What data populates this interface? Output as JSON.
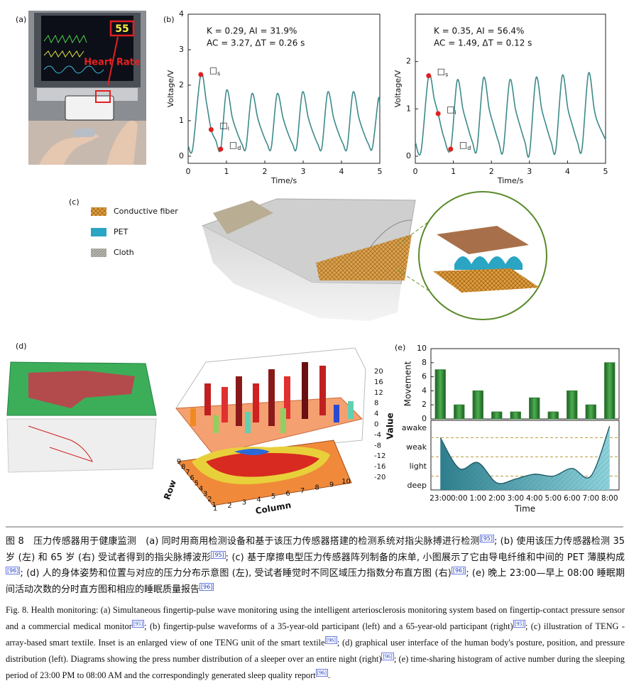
{
  "panel_labels": [
    "(a)",
    "(b)",
    "(c)",
    "(d)",
    "(e)"
  ],
  "panel_a": {
    "monitor_reading": "55",
    "annotation": "Heart Rate"
  },
  "panel_c": {
    "legend": [
      "Conductive fiber",
      "PET",
      "Cloth"
    ]
  },
  "panel_d": {
    "value_label": "Value",
    "row_label": "Row",
    "column_label": "Column",
    "value_ticks": [
      20,
      16,
      12,
      8,
      4,
      0,
      -4,
      -8,
      -12,
      -16,
      -20
    ],
    "row_ticks": [
      9,
      8,
      7,
      6,
      5,
      4,
      3,
      2,
      1
    ],
    "column_ticks": [
      1,
      2,
      3,
      4,
      5,
      6,
      7,
      8,
      9,
      10
    ]
  },
  "chart_data": [
    {
      "type": "line",
      "xlabel": "Time/s",
      "ylabel": "Voltage/V",
      "annotations": [
        "K = 0.29,  AI = 31.9%",
        "AC = 3.27,  ΔT = 0.26 s"
      ],
      "xlim": [
        0,
        5
      ],
      "ylim": [
        -0.2,
        4
      ],
      "xticks": [
        0,
        1,
        2,
        3,
        4,
        5
      ],
      "yticks": [
        0,
        1,
        2,
        3,
        4
      ],
      "color": "#3d8a8a",
      "series": [
        {
          "x": [
            0,
            0.12,
            0.33,
            0.48,
            0.6,
            0.72,
            0.85,
            1.0,
            1.15,
            1.25,
            1.4,
            1.51,
            1.66,
            1.81,
            1.91,
            2.06,
            2.17,
            2.32,
            2.47,
            2.57,
            2.72,
            2.83,
            2.98,
            3.13,
            3.23,
            3.38,
            3.49,
            3.64,
            3.79,
            3.89,
            4.04,
            4.15,
            4.3,
            4.45,
            4.55,
            4.7,
            4.81,
            4.96,
            5.0
          ],
          "values": [
            0.3,
            0.22,
            2.3,
            1.5,
            0.75,
            0.45,
            0.2,
            1.85,
            1.1,
            0.75,
            0.35,
            0.25,
            1.75,
            1.1,
            0.75,
            0.35,
            0.25,
            1.75,
            1.1,
            0.75,
            0.35,
            0.25,
            1.8,
            1.1,
            0.75,
            0.35,
            0.25,
            1.8,
            1.1,
            0.75,
            0.35,
            0.25,
            1.8,
            1.1,
            0.75,
            0.35,
            0.25,
            1.6,
            1.4
          ]
        }
      ],
      "points": {
        "x": [
          0.33,
          0.6,
          0.85
        ],
        "values": [
          2.3,
          0.75,
          0.2
        ],
        "color": "#e02020",
        "labels": [
          {
            "box": "□",
            "sub": "s"
          },
          {
            "box": "□",
            "sub": "i"
          },
          {
            "box": "□",
            "sub": "d"
          }
        ]
      }
    },
    {
      "type": "line",
      "xlabel": "Time/s",
      "ylabel": "Voltage/V",
      "annotations": [
        "K = 0.35,  AI = 56.4%",
        "AC = 1.49,  ΔT = 0.12 s"
      ],
      "xlim": [
        0,
        5
      ],
      "ylim": [
        -0.15,
        3
      ],
      "xticks": [
        0,
        1,
        2,
        3,
        4,
        5
      ],
      "yticks": [
        0,
        1,
        2
      ],
      "color": "#3d8a8a",
      "series": [
        {
          "x": [
            0,
            0.15,
            0.35,
            0.5,
            0.6,
            0.75,
            0.93,
            1.1,
            1.25,
            1.35,
            1.5,
            1.62,
            1.79,
            1.94,
            2.04,
            2.19,
            2.31,
            2.48,
            2.63,
            2.73,
            2.88,
            3.0,
            3.17,
            3.32,
            3.42,
            3.57,
            3.69,
            3.86,
            4.01,
            4.11,
            4.26,
            4.38,
            4.55,
            4.7,
            4.8,
            5.0
          ],
          "values": [
            0.3,
            0.1,
            1.7,
            1.2,
            0.9,
            0.4,
            0.15,
            1.6,
            1.0,
            0.7,
            0.3,
            0.15,
            1.65,
            1.0,
            0.7,
            0.3,
            0.12,
            1.6,
            1.0,
            0.7,
            0.3,
            0.05,
            1.65,
            1.0,
            0.7,
            0.3,
            0.12,
            1.7,
            1.0,
            0.7,
            0.3,
            0.15,
            1.75,
            1.0,
            0.7,
            0.35
          ]
        }
      ],
      "points": {
        "x": [
          0.35,
          0.6,
          0.93
        ],
        "values": [
          1.7,
          0.9,
          0.15
        ],
        "color": "#e02020",
        "labels": [
          {
            "box": "□",
            "sub": "s"
          },
          {
            "box": "□",
            "sub": "i"
          },
          {
            "box": "□",
            "sub": "d"
          }
        ]
      }
    },
    {
      "type": "bar",
      "ylabel": "Movement",
      "values": [
        7,
        2,
        4,
        1,
        1,
        3,
        1,
        4,
        2,
        8
      ],
      "color": "#2e7d32",
      "ylim": [
        0,
        10
      ],
      "yticks": [
        0,
        2,
        4,
        6,
        8,
        10
      ]
    },
    {
      "type": "area",
      "xlabel": "Time",
      "categories": [
        "23:00",
        "0:00",
        "1:00",
        "2:00",
        "3:00",
        "4:00",
        "5:00",
        "6:00",
        "7:00",
        "8:00"
      ],
      "values": [
        2.5,
        0.9,
        1.2,
        0.15,
        0.35,
        0.6,
        0.5,
        0.9,
        0.5,
        3.1
      ],
      "color": "#3a9aa8",
      "ylim": [
        -0.22,
        3.4
      ],
      "yticks": [
        {
          "value": 0,
          "label": "deep"
        },
        {
          "value": 1,
          "label": "light"
        },
        {
          "value": 2,
          "label": "weak"
        },
        {
          "value": 3,
          "label": "awake"
        }
      ],
      "reference_lines": [
        0.5,
        1.5,
        2.5
      ]
    }
  ],
  "caption_zh": [
    {
      "text": "图 8　压力传感器用于健康监测　(a) 同时用商用检测设备和基于该压力传感器搭建的检测系统对指尖脉搏进行检测"
    },
    {
      "ref": "[95]"
    },
    {
      "text": "; (b) 使用该压力传感器检测 35 岁 (左) 和 65 岁 (右) 受试者得到的指尖脉搏波形"
    },
    {
      "ref": "[95]"
    },
    {
      "text": "; (c) 基于摩擦电型压力传感器阵列制备的床单, 小图展示了它由导电纤维和中间的 PET 薄膜构成"
    },
    {
      "ref": "[96]"
    },
    {
      "text": "; (d) 人的身体姿势和位置与对应的压力分布示意图 (左), 受试者睡觉时不同区域压力指数分布直方图 (右)"
    },
    {
      "ref": "[96]"
    },
    {
      "text": "; (e) 晚上 23:00—早上 08:00 睡眠期间活动次数的分时直方图和相应的睡眠质量报告"
    },
    {
      "ref": "[96]"
    }
  ],
  "caption_en": [
    {
      "text": "Fig. 8. Health monitoring: (a) Simultaneous fingertip-pulse wave monitoring using the intelligent arteriosclerosis monitoring system based on fingertip-contact pressure sensor and a commercial medical monitor"
    },
    {
      "ref": "[95]"
    },
    {
      "text": "; (b) fingertip-pulse waveforms of a 35-year-old participant (left) and a 65-year-old participant (right)"
    },
    {
      "ref": "[95]"
    },
    {
      "text": "; (c) illustration of TENG -array-based smart textile. Inset is an enlarged view of one TENG unit of the smart textile"
    },
    {
      "ref": "[96]"
    },
    {
      "text": "; (d) graphical user interface of the human body's posture, position, and pressure distribution (left). Diagrams showing the press number distribution of a sleeper over an entire night (right)"
    },
    {
      "ref": "[96]"
    },
    {
      "text": "; (e) time-sharing histogram of active number during the sleeping period of 23:00 PM to 08:00 AM and the correspondingly generated sleep quality report"
    },
    {
      "ref": "[96]"
    },
    {
      "text": "."
    }
  ]
}
